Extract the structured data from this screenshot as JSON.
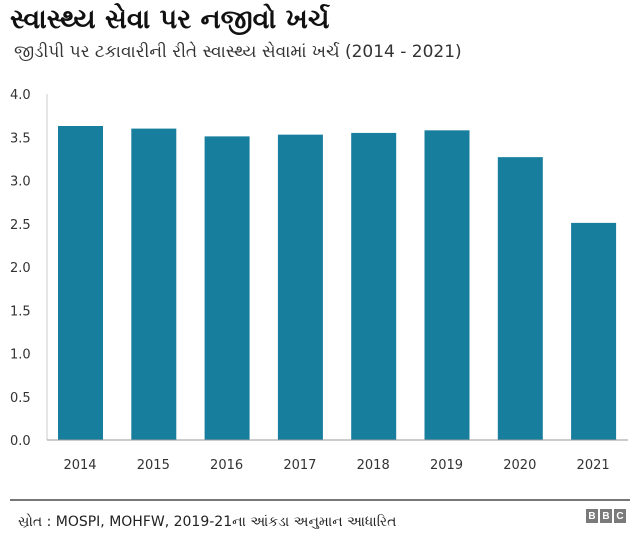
{
  "title": "સ્વાસ્થ્ય સેવા પર નજીવો ખર્ચ",
  "subtitle": "જીડીપી પર ટકાવારીની રીતે સ્વાસ્થ્ય સેવામાં ખર્ચ (2014 - 2021)",
  "source": "સ્રોત : MOSPI, MOHFW, 2019-21ના આંકડા અનુમાન આધારિત",
  "logo": [
    "B",
    "B",
    "C"
  ],
  "chart_data": {
    "type": "bar",
    "categories": [
      "2014",
      "2015",
      "2016",
      "2017",
      "2018",
      "2019",
      "2020",
      "2021"
    ],
    "values": [
      3.63,
      3.6,
      3.51,
      3.53,
      3.55,
      3.58,
      3.27,
      2.51
    ],
    "ylim": [
      0,
      4.0
    ],
    "yticks": [
      "0.0",
      "0.5",
      "1.0",
      "1.5",
      "2.0",
      "2.5",
      "3.0",
      "3.5",
      "4.0"
    ],
    "grid": false,
    "bar_color": "#177e9e"
  }
}
